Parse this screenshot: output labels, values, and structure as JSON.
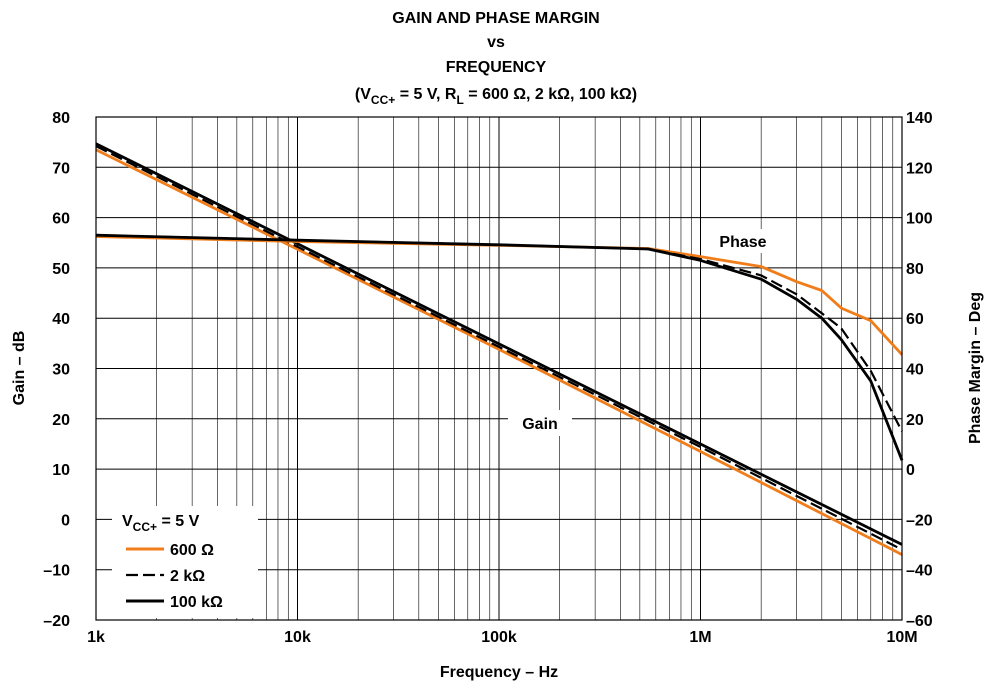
{
  "chart_data": {
    "type": "line",
    "title": {
      "line1": "GAIN AND PHASE MARGIN",
      "line2": "vs",
      "line3": "FREQUENCY",
      "cond_prefix": "(V",
      "cond_sub": "CC+",
      "cond_mid": " = 5 V, R",
      "cond_sub2": "L",
      "cond_rest": " = 600 Ω, 2 kΩ, 100 kΩ)"
    },
    "xlabel": "Frequency – Hz",
    "ylabel": "Gain – dB",
    "y2label": "Phase Margin – Deg",
    "x_scale": "log",
    "xlim": [
      1000,
      10000000
    ],
    "ylim": [
      -20,
      80
    ],
    "y2lim": [
      -60,
      140
    ],
    "grid": true,
    "x_ticks": [
      {
        "value": 1000,
        "label": "1k"
      },
      {
        "value": 10000,
        "label": "10k"
      },
      {
        "value": 100000,
        "label": "100k"
      },
      {
        "value": 1000000,
        "label": "1M"
      },
      {
        "value": 10000000,
        "label": "10M"
      }
    ],
    "y_ticks": [
      80,
      70,
      60,
      50,
      40,
      30,
      20,
      10,
      0,
      -10,
      -20
    ],
    "y_tick_labels": [
      "80",
      "70",
      "60",
      "50",
      "40",
      "30",
      "20",
      "10",
      "0",
      "–10",
      "–20"
    ],
    "y2_ticks": [
      140,
      120,
      100,
      80,
      60,
      40,
      20,
      0,
      -20,
      -40,
      -60
    ],
    "y2_tick_labels": [
      "140",
      "120",
      "100",
      "80",
      "60",
      "40",
      "20",
      "0",
      "–20",
      "–40",
      "–60"
    ],
    "annotations": {
      "phase": "Phase",
      "gain": "Gain"
    },
    "legend": {
      "placement": "bottom-left",
      "title_prefix": "V",
      "title_sub": "CC+",
      "title_rest": " = 5 V",
      "entries": [
        {
          "label": "600 Ω",
          "color": "#f07d1a",
          "style": "solid"
        },
        {
          "label": "2 kΩ",
          "color": "#000000",
          "style": "dashed"
        },
        {
          "label": "100 kΩ",
          "color": "#000000",
          "style": "solid"
        }
      ]
    },
    "series": [
      {
        "name": "600 Ω",
        "quantity": "gain",
        "axis": "left",
        "color": "#f07d1a",
        "style": "solid",
        "x": [
          1000,
          10000,
          100000,
          1000000,
          10000000
        ],
        "y": [
          73.5,
          53.7,
          33.8,
          13.5,
          -7
        ]
      },
      {
        "name": "2 kΩ",
        "quantity": "gain",
        "axis": "left",
        "color": "#000000",
        "style": "dashed",
        "x": [
          1000,
          10000,
          100000,
          1000000,
          10000000
        ],
        "y": [
          74.2,
          54.2,
          34.3,
          14.4,
          -6
        ]
      },
      {
        "name": "100 kΩ",
        "quantity": "gain",
        "axis": "left",
        "color": "#000000",
        "style": "solid",
        "x": [
          1000,
          10000,
          100000,
          1000000,
          10000000
        ],
        "y": [
          74.7,
          54.8,
          34.9,
          15,
          -5
        ]
      },
      {
        "name": "600 Ω",
        "quantity": "phase",
        "axis": "right",
        "color": "#f07d1a",
        "style": "solid",
        "x": [
          1000,
          10000,
          100000,
          550000,
          1000000,
          2000000,
          3000000,
          4000000,
          5000000,
          7000000,
          10000000
        ],
        "y": [
          92.5,
          90.5,
          89,
          87.7,
          84.5,
          80.5,
          74.5,
          71,
          64,
          59,
          45.5
        ]
      },
      {
        "name": "2 kΩ",
        "quantity": "phase",
        "axis": "right",
        "color": "#000000",
        "style": "dashed",
        "x": [
          1000,
          10000,
          100000,
          550000,
          1000000,
          2000000,
          3000000,
          4000000,
          5000000,
          7000000,
          10000000
        ],
        "y": [
          93,
          91,
          89.2,
          87.5,
          83.5,
          77,
          69.5,
          62,
          56,
          39,
          15
        ]
      },
      {
        "name": "100 kΩ",
        "quantity": "phase",
        "axis": "right",
        "color": "#000000",
        "style": "solid",
        "x": [
          1000,
          10000,
          100000,
          550000,
          1000000,
          2000000,
          3000000,
          4000000,
          5000000,
          7000000,
          10000000
        ],
        "y": [
          93,
          91,
          89.2,
          87.5,
          83,
          75.5,
          67.5,
          60,
          51.5,
          35,
          3.5
        ]
      }
    ]
  }
}
